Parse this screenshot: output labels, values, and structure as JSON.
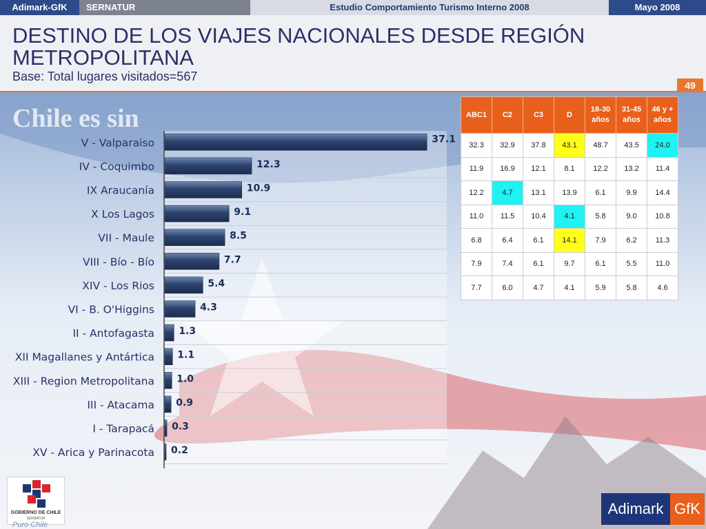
{
  "header": {
    "brand": "Adimark-GfK",
    "client": "SERNATUR",
    "study": "Estudio Comportamiento Turismo Interno 2008",
    "date": "Mayo 2008"
  },
  "title": "DESTINO DE LOS VIAJES NACIONALES DESDE REGIÓN METROPOLITANA",
  "subtitle": "Base: Total lugares visitados=567",
  "page_number": "49",
  "background": {
    "watermark": "Chile es sin"
  },
  "logos": {
    "gobierno_line1": "GOBIERNO DE CHILE",
    "gobierno_line2": "SERNATUR",
    "puro_chile": "Puro Chile",
    "adimark": "Adimark",
    "gfk": "GfK"
  },
  "colors": {
    "accent": "#e8601c",
    "navy": "#1e3577",
    "bar": "#3a4f7a",
    "highlight_yellow": "#ffff1a",
    "highlight_cyan": "#1ff2f2"
  },
  "chart_data": {
    "type": "bar",
    "orientation": "horizontal",
    "categories": [
      "V - Valparaiso",
      "IV - Coquimbo",
      "IX Araucanía",
      "X Los Lagos",
      "VII - Maule",
      "VIII - Bío - Bío",
      "XIV - Los Rios",
      "VI - B. O'Higgins",
      "II - Antofagasta",
      "XII Magallanes y Antártica",
      "XIII - Region Metropolitana",
      "III - Atacama",
      "I - Tarapacá",
      "XV - Arica y Parinacota"
    ],
    "values": [
      37.1,
      12.3,
      10.9,
      9.1,
      8.5,
      7.7,
      5.4,
      4.3,
      1.3,
      1.1,
      1.0,
      0.9,
      0.3,
      0.2
    ],
    "labels": [
      "37.1",
      "12.3",
      "10.9",
      "9.1",
      "8.5",
      "7.7",
      "5.4",
      "4.3",
      "1.3",
      "1.1",
      "1.0",
      "0.9",
      "0.3",
      "0.2"
    ],
    "xlim": [
      0,
      40
    ]
  },
  "table": {
    "headers": [
      "ABC1",
      "C2",
      "C3",
      "D",
      "18-30 años",
      "31-45 años",
      "46 y + años"
    ],
    "rows": [
      [
        "32.3",
        "32.9",
        "37.8",
        "43.1",
        "48.7",
        "43.5",
        "24.0"
      ],
      [
        "11.9",
        "16.9",
        "12.1",
        "8.1",
        "12.2",
        "13.2",
        "11.4"
      ],
      [
        "12.2",
        "4.7",
        "13.1",
        "13.9",
        "6.1",
        "9.9",
        "14.4"
      ],
      [
        "11.0",
        "11.5",
        "10.4",
        "4.1",
        "5.8",
        "9.0",
        "10.8"
      ],
      [
        "6.8",
        "6.4",
        "6.1",
        "14.1",
        "7.9",
        "6.2",
        "11.3"
      ],
      [
        "7.9",
        "7.4",
        "6.1",
        "9.7",
        "6.1",
        "5.5",
        "11.0"
      ],
      [
        "7.7",
        "6.0",
        "4.7",
        "4.1",
        "5.9",
        "5.8",
        "4.6"
      ]
    ],
    "highlights": [
      {
        "row": 0,
        "col": 3,
        "color": "yellow"
      },
      {
        "row": 0,
        "col": 6,
        "color": "cyan"
      },
      {
        "row": 2,
        "col": 1,
        "color": "cyan"
      },
      {
        "row": 3,
        "col": 3,
        "color": "cyan"
      },
      {
        "row": 4,
        "col": 3,
        "color": "yellow"
      }
    ]
  }
}
